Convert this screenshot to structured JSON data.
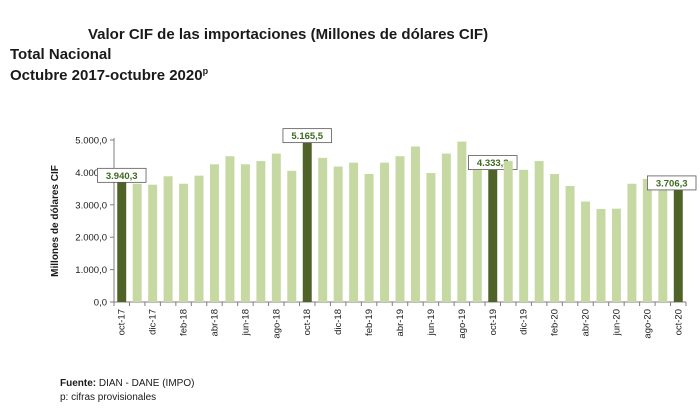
{
  "header": {
    "title": "Valor CIF de las importaciones (Millones de dólares CIF)",
    "subtitle_line1": "Total Nacional",
    "subtitle_line2": "Octubre 2017-octubre 2020",
    "subtitle_sup": "p"
  },
  "footer": {
    "source_label": "Fuente:",
    "source_text": "DIAN - DANE (IMPO)",
    "note": "p: cifras provisionales"
  },
  "colors": {
    "bar_light": "#c6d9a3",
    "bar_dark": "#4f6228",
    "label_text": "#3a6b1e",
    "axis": "#7f7f7f",
    "grid": "#d9d9d9"
  },
  "chart_data": {
    "type": "bar",
    "title": "Valor CIF de las importaciones (Millones de dólares CIF)",
    "xlabel": "",
    "ylabel": "Millones de dólares CIF",
    "ylim": [
      0,
      5000
    ],
    "yticks": [
      0,
      1000,
      2000,
      3000,
      4000,
      5000
    ],
    "ytick_labels": [
      "0,0",
      "1.000,0",
      "2.000,0",
      "3.000,0",
      "4.000,0",
      "5.000,0"
    ],
    "grid": false,
    "categories": [
      "oct-17",
      "nov-17",
      "dic-17",
      "ene-18",
      "feb-18",
      "mar-18",
      "abr-18",
      "may-18",
      "jun-18",
      "jul-18",
      "ago-18",
      "sep-18",
      "oct-18",
      "nov-18",
      "dic-18",
      "ene-19",
      "feb-19",
      "mar-19",
      "abr-19",
      "may-19",
      "jun-19",
      "jul-19",
      "ago-19",
      "sep-19",
      "oct-19",
      "nov-19",
      "dic-19",
      "ene-20",
      "feb-20",
      "mar-20",
      "abr-20",
      "may-20",
      "jun-20",
      "jul-20",
      "ago-20",
      "sep-20",
      "oct-20"
    ],
    "visible_tick_labels": [
      "oct-17",
      "dic-17",
      "feb-18",
      "abr-18",
      "jun-18",
      "ago-18",
      "oct-18",
      "dic-18",
      "feb-19",
      "abr-19",
      "jun-19",
      "ago-19",
      "oct-19",
      "dic-19",
      "feb-20",
      "abr-20",
      "jun-20",
      "ago-20",
      "oct-20"
    ],
    "values": [
      3940.3,
      3650,
      3620,
      3880,
      3650,
      3900,
      4250,
      4500,
      4250,
      4350,
      4580,
      4050,
      5165.5,
      4450,
      4180,
      4300,
      3950,
      4300,
      4500,
      4800,
      3980,
      4580,
      4950,
      4200,
      4333.3,
      4350,
      4080,
      4350,
      3950,
      3580,
      3100,
      2870,
      2880,
      3650,
      3800,
      3450,
      3706.3
    ],
    "highlighted": [
      {
        "category": "oct-17",
        "label": "3.940,3"
      },
      {
        "category": "oct-18",
        "label": "5.165,5"
      },
      {
        "category": "oct-19",
        "label": "4.333,3"
      },
      {
        "category": "oct-20",
        "label": "3.706,3"
      }
    ]
  }
}
